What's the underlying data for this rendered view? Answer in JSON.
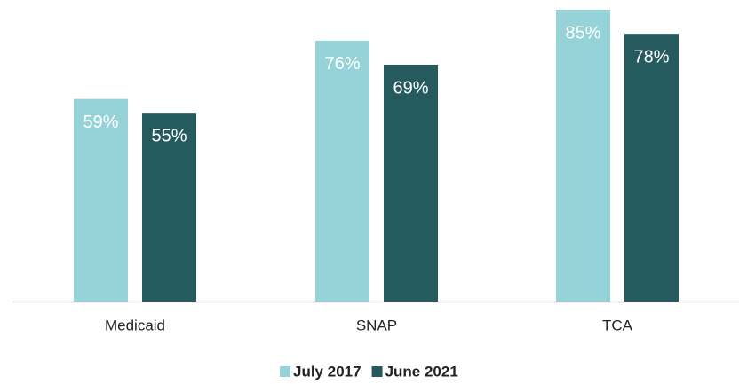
{
  "chart_data": {
    "type": "bar",
    "categories": [
      "Medicaid",
      "SNAP",
      "TCA"
    ],
    "series": [
      {
        "name": "July 2017",
        "color": "#96d3d8",
        "values": [
          59,
          76,
          85
        ],
        "value_labels": [
          "59%",
          "76%",
          "85%"
        ]
      },
      {
        "name": "June 2021",
        "color": "#255b5f",
        "values": [
          55,
          69,
          78
        ],
        "value_labels": [
          "55%",
          "69%",
          "78%"
        ]
      }
    ],
    "legend": "bottom"
  }
}
